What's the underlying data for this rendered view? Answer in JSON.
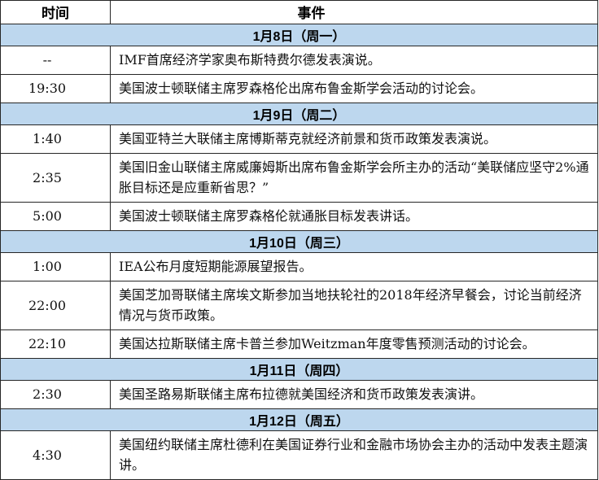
{
  "table": {
    "headers": {
      "time": "时间",
      "event": "事件"
    },
    "colors": {
      "date_band_bg": "#BDD7EE",
      "border": "#262626",
      "text": "#111111"
    },
    "sections": [
      {
        "date": "1月8日（周一）",
        "rows": [
          {
            "time": "--",
            "event": "IMF首席经济学家奥布斯特费尔德发表演说。"
          },
          {
            "time": "19:30",
            "event": "美国波士顿联储主席罗森格伦出席布鲁金斯学会活动的讨论会。"
          }
        ]
      },
      {
        "date": "1月9日（周二）",
        "rows": [
          {
            "time": "1:40",
            "event": "美国亚特兰大联储主席博斯蒂克就经济前景和货币政策发表演说。"
          },
          {
            "time": "2:35",
            "event": "美国旧金山联储主席威廉姆斯出席布鲁金斯学会所主办的活动“美联储应坚守2%通胀目标还是应重新省思？”"
          },
          {
            "time": "5:00",
            "event": "美国波士顿联储主席罗森格伦就通胀目标发表讲话。"
          }
        ]
      },
      {
        "date": "1月10日（周三）",
        "rows": [
          {
            "time": "1:00",
            "event": "IEA公布月度短期能源展望报告。"
          },
          {
            "time": "22:00",
            "event": "美国芝加哥联储主席埃文斯参加当地扶轮社的2018年经济早餐会，讨论当前经济情况与货币政策。"
          },
          {
            "time": "22:10",
            "event": "美国达拉斯联储主席卡普兰参加Weitzman年度零售预测活动的讨论会。"
          }
        ]
      },
      {
        "date": "1月11日（周四）",
        "rows": [
          {
            "time": "2:30",
            "event": "美国圣路易斯联储主席布拉德就美国经济和货币政策发表演讲。"
          }
        ]
      },
      {
        "date": "1月12日（周五）",
        "rows": [
          {
            "time": "4:30",
            "event": "美国纽约联储主席杜德利在美国证券行业和金融市场协会主办的活动中发表主题演讲。"
          }
        ]
      }
    ]
  }
}
